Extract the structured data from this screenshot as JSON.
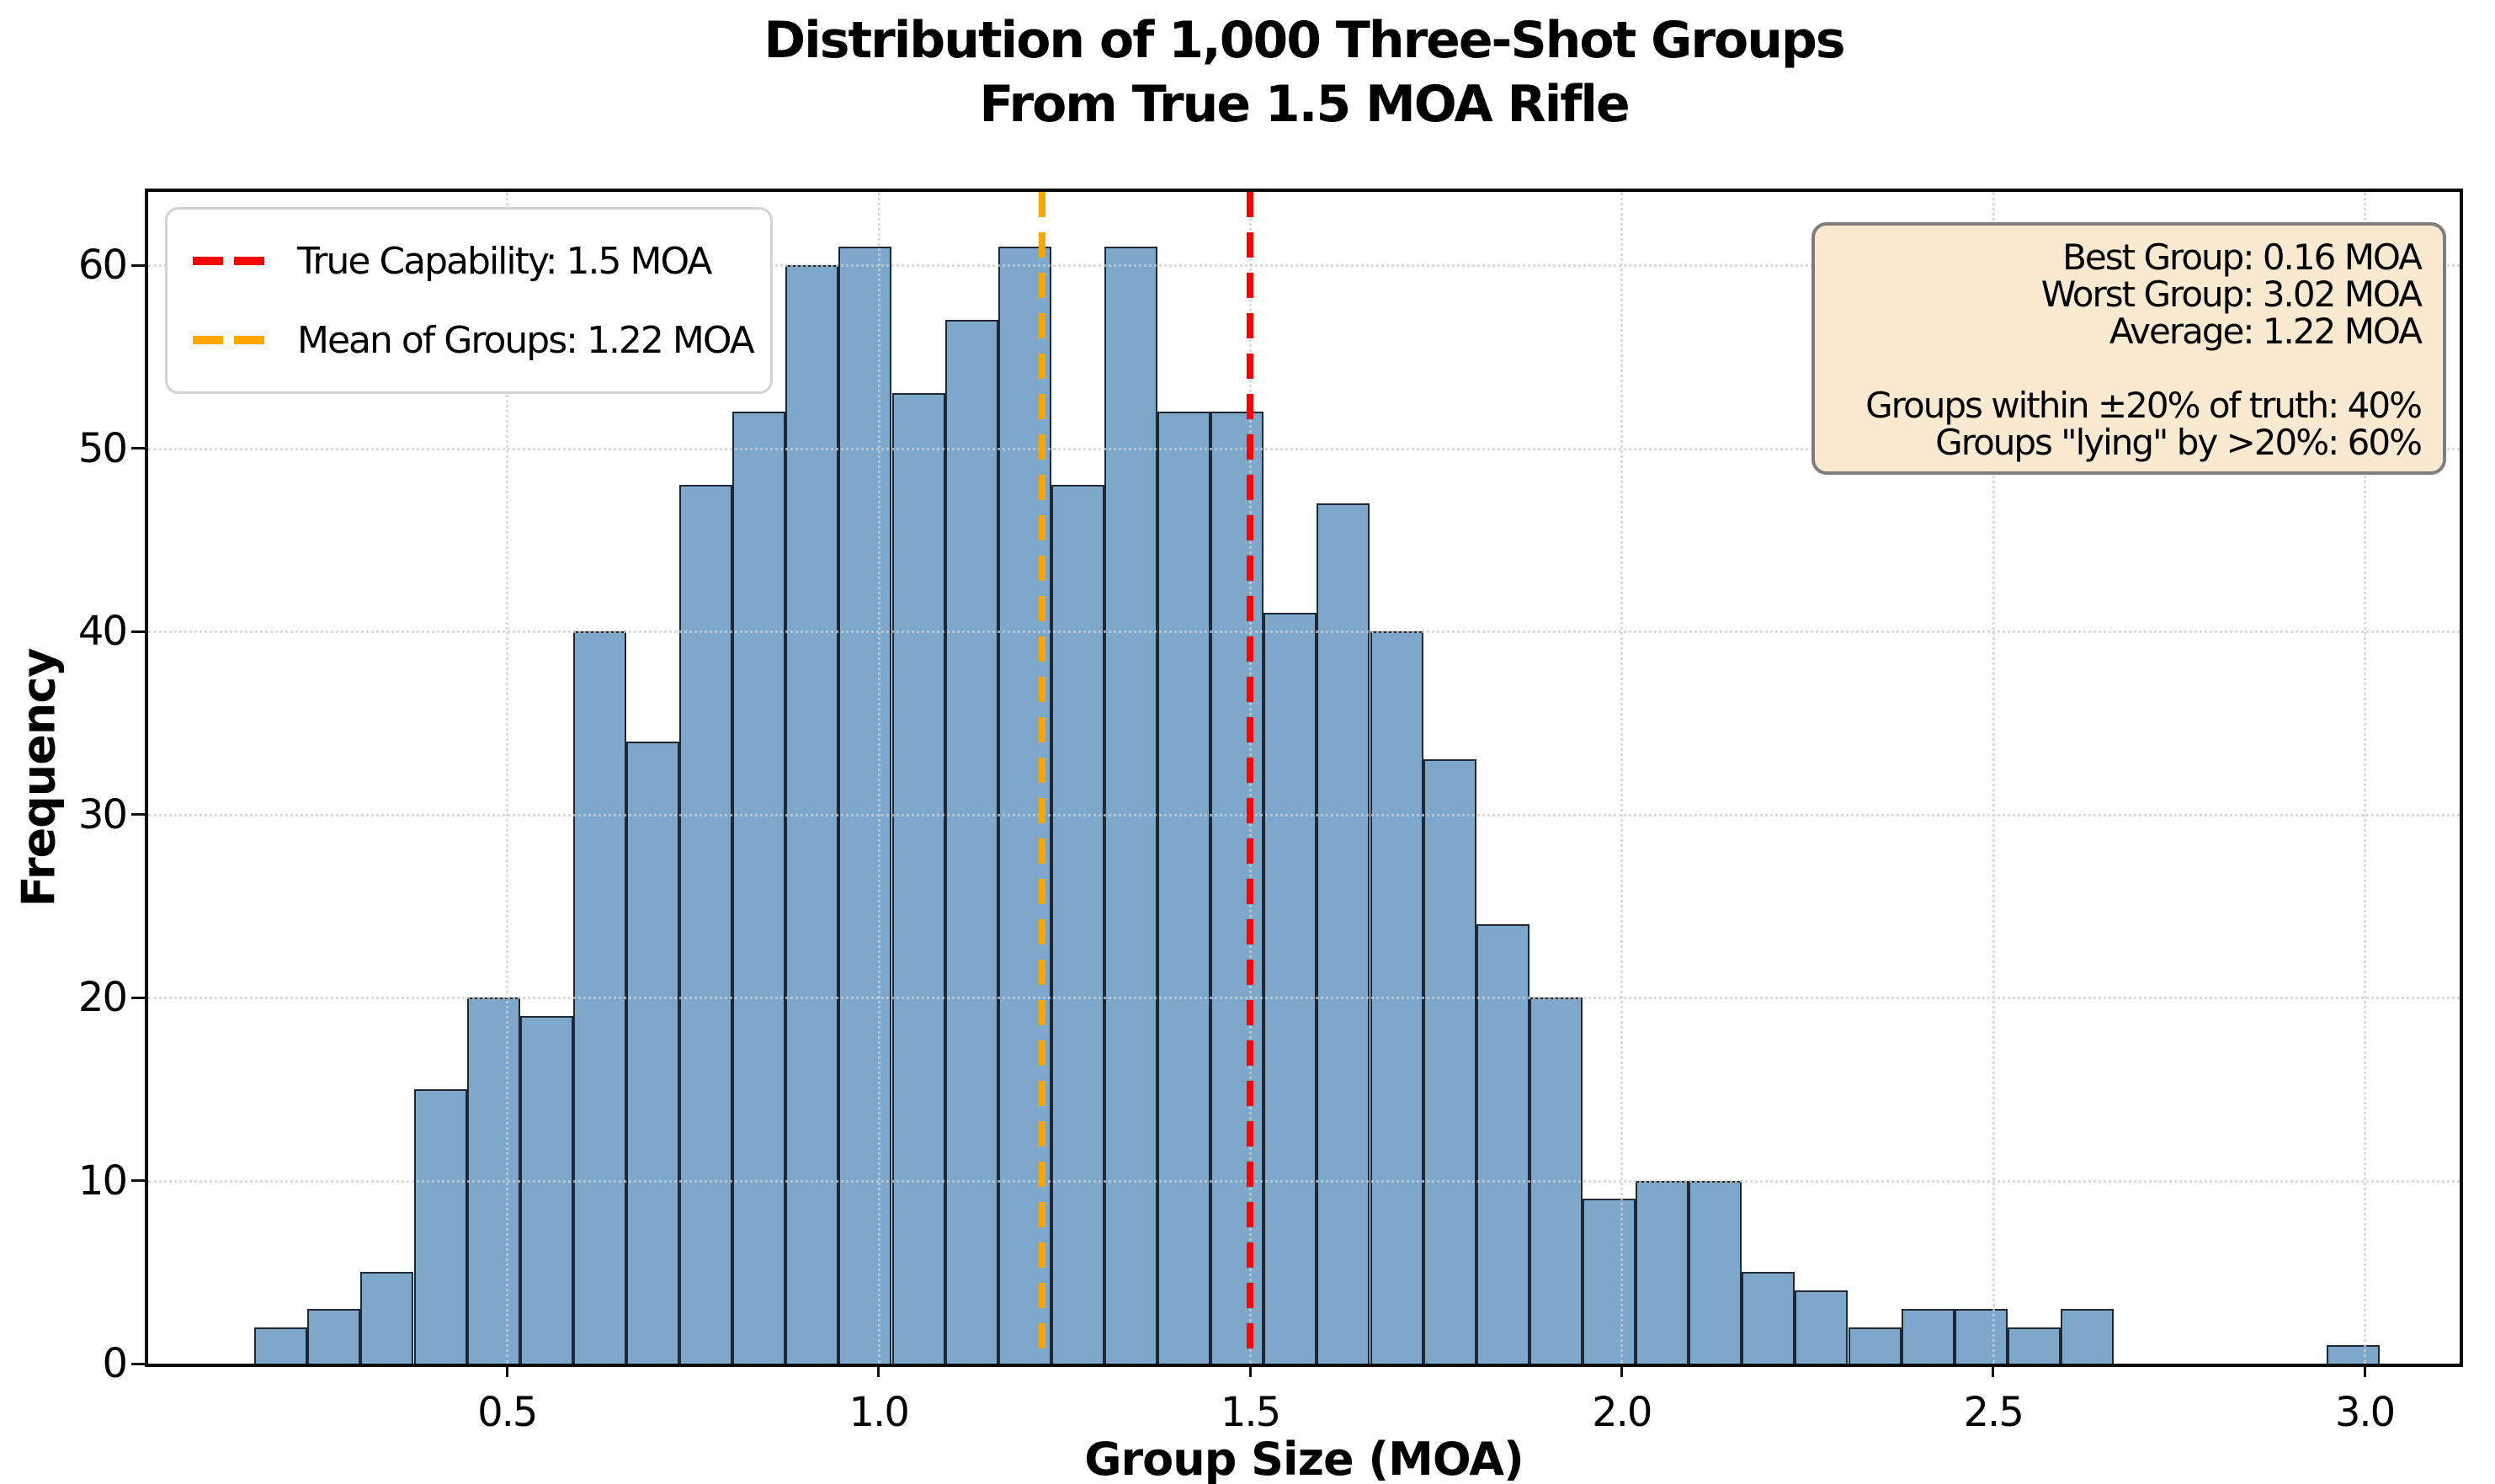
{
  "title": {
    "line1": "Distribution of 1,000 Three-Shot Groups",
    "line2": "From True 1.5 MOA Rifle"
  },
  "chart_data": {
    "type": "histogram",
    "title": "Distribution of 1,000 Three-Shot Groups From True 1.5 MOA Rifle",
    "xlabel": "Group Size (MOA)",
    "ylabel": "Frequency",
    "bin_start": 0.16,
    "bin_width": 0.0715,
    "counts": [
      2,
      3,
      5,
      15,
      20,
      19,
      40,
      34,
      48,
      52,
      60,
      61,
      53,
      57,
      61,
      48,
      61,
      52,
      52,
      41,
      47,
      40,
      33,
      24,
      20,
      9,
      10,
      10,
      5,
      4,
      2,
      3,
      3,
      2,
      3,
      0,
      0,
      0,
      0,
      1
    ],
    "total_groups": 1000,
    "xlim": [
      0.017,
      3.128
    ],
    "ylim": [
      0,
      64
    ],
    "xticks": [
      {
        "v": 0.5,
        "label": "0.5"
      },
      {
        "v": 1.0,
        "label": "1.0"
      },
      {
        "v": 1.5,
        "label": "1.5"
      },
      {
        "v": 2.0,
        "label": "2.0"
      },
      {
        "v": 2.5,
        "label": "2.5"
      },
      {
        "v": 3.0,
        "label": "3.0"
      }
    ],
    "yticks": [
      {
        "v": 0,
        "label": "0"
      },
      {
        "v": 10,
        "label": "10"
      },
      {
        "v": 20,
        "label": "20"
      },
      {
        "v": 30,
        "label": "30"
      },
      {
        "v": 40,
        "label": "40"
      },
      {
        "v": 50,
        "label": "50"
      },
      {
        "v": 60,
        "label": "60"
      }
    ],
    "grid": true,
    "bar_color": "#7ea8cb",
    "bar_edge_color": "#232830",
    "vlines": [
      {
        "x": 1.5,
        "color": "#ff0000",
        "label": "True Capability: 1.5 MOA"
      },
      {
        "x": 1.22,
        "color": "#ffa500",
        "label": "Mean of Groups: 1.22 MOA"
      }
    ],
    "legend_position": "upper-left"
  },
  "stats": {
    "lines": [
      "Best Group: 0.16 MOA",
      "Worst Group: 3.02 MOA",
      "Average: 1.22 MOA",
      "",
      "Groups within ±20% of truth: 40%",
      "Groups \"lying\" by >20%: 60%"
    ]
  }
}
